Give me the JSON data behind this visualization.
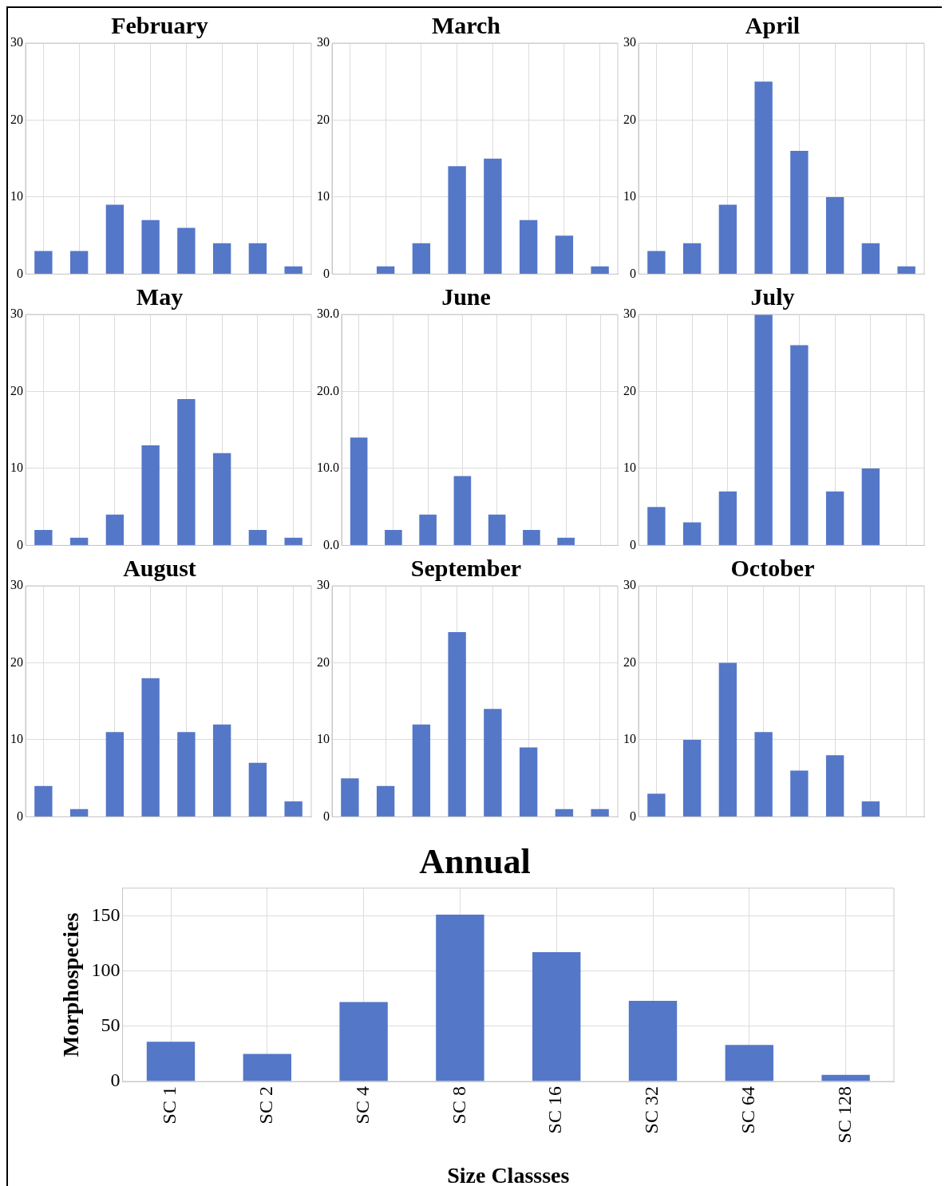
{
  "chart_data": [
    {
      "type": "bar",
      "title": "February",
      "categories": [
        null,
        null,
        null,
        null,
        null,
        null,
        null,
        null
      ],
      "values": [
        3,
        3,
        9,
        7,
        6,
        4,
        4,
        1
      ],
      "color": "#5577c8",
      "ylim": [
        0,
        30
      ],
      "yticks": [
        0,
        10,
        20,
        30
      ],
      "grid": true,
      "tick_labels": "y"
    },
    {
      "type": "bar",
      "title": "March",
      "categories": [
        null,
        null,
        null,
        null,
        null,
        null,
        null,
        null
      ],
      "values": [
        0,
        1,
        4,
        14,
        15,
        7,
        5,
        1
      ],
      "color": "#5577c8",
      "ylim": [
        0,
        30
      ],
      "yticks": [
        0,
        10,
        20,
        30
      ],
      "grid": true,
      "tick_labels": "y"
    },
    {
      "type": "bar",
      "title": "April",
      "categories": [
        null,
        null,
        null,
        null,
        null,
        null,
        null,
        null
      ],
      "values": [
        3,
        4,
        9,
        25,
        16,
        10,
        4,
        1
      ],
      "color": "#5577c8",
      "ylim": [
        0,
        30
      ],
      "yticks": [
        0,
        10,
        20,
        30
      ],
      "grid": true,
      "tick_labels": "y"
    },
    {
      "type": "bar",
      "title": "May",
      "categories": [
        null,
        null,
        null,
        null,
        null,
        null,
        null,
        null
      ],
      "values": [
        2,
        1,
        4,
        13,
        19,
        12,
        2,
        1
      ],
      "color": "#5577c8",
      "ylim": [
        0,
        30
      ],
      "yticks": [
        0,
        10,
        20,
        30
      ],
      "grid": true,
      "tick_labels": "y"
    },
    {
      "type": "bar",
      "title": "June",
      "categories": [
        null,
        null,
        null,
        null,
        null,
        null,
        null,
        null
      ],
      "values": [
        14,
        2,
        4,
        9,
        4,
        2,
        1,
        0
      ],
      "color": "#5577c8",
      "ylim": [
        0,
        30
      ],
      "yticks": [
        {
          "value": 0,
          "label": "0.0"
        },
        {
          "value": 10,
          "label": "10.0"
        },
        {
          "value": 20,
          "label": "20.0"
        },
        {
          "value": 30,
          "label": "30.0"
        }
      ],
      "grid": true,
      "tick_labels": "y"
    },
    {
      "type": "bar",
      "title": "July",
      "categories": [
        null,
        null,
        null,
        null,
        null,
        null,
        null,
        null
      ],
      "values": [
        5,
        3,
        7,
        30,
        26,
        7,
        10,
        0
      ],
      "color": "#5577c8",
      "ylim": [
        0,
        30
      ],
      "yticks": [
        0,
        10,
        20,
        30
      ],
      "grid": true,
      "tick_labels": "y"
    },
    {
      "type": "bar",
      "title": "August",
      "categories": [
        null,
        null,
        null,
        null,
        null,
        null,
        null,
        null
      ],
      "values": [
        4,
        1,
        11,
        18,
        11,
        12,
        7,
        2
      ],
      "color": "#5577c8",
      "ylim": [
        0,
        30
      ],
      "yticks": [
        0,
        10,
        20,
        30
      ],
      "grid": true,
      "tick_labels": "y"
    },
    {
      "type": "bar",
      "title": "September",
      "categories": [
        null,
        null,
        null,
        null,
        null,
        null,
        null,
        null
      ],
      "values": [
        5,
        4,
        12,
        24,
        14,
        9,
        1,
        1
      ],
      "color": "#5577c8",
      "ylim": [
        0,
        30
      ],
      "yticks": [
        0,
        10,
        20,
        30
      ],
      "grid": true,
      "tick_labels": "y"
    },
    {
      "type": "bar",
      "title": "October",
      "categories": [
        null,
        null,
        null,
        null,
        null,
        null,
        null,
        null
      ],
      "values": [
        3,
        10,
        20,
        11,
        6,
        8,
        2,
        0
      ],
      "color": "#5577c8",
      "ylim": [
        0,
        30
      ],
      "yticks": [
        0,
        10,
        20,
        30
      ],
      "grid": true,
      "tick_labels": "y"
    },
    {
      "type": "bar",
      "title": "Annual",
      "xlabel": "Size Classses",
      "ylabel": "Morphospecies",
      "categories": [
        "SC 1",
        "SC 2",
        "SC 4",
        "SC 8",
        "SC 16",
        "SC 32",
        "SC 64",
        "SC 128"
      ],
      "values": [
        36,
        25,
        72,
        151,
        117,
        73,
        33,
        6
      ],
      "color": "#5577c8",
      "ylim": [
        0,
        175
      ],
      "yticks": [
        0,
        50,
        100,
        150
      ],
      "grid": true
    }
  ]
}
